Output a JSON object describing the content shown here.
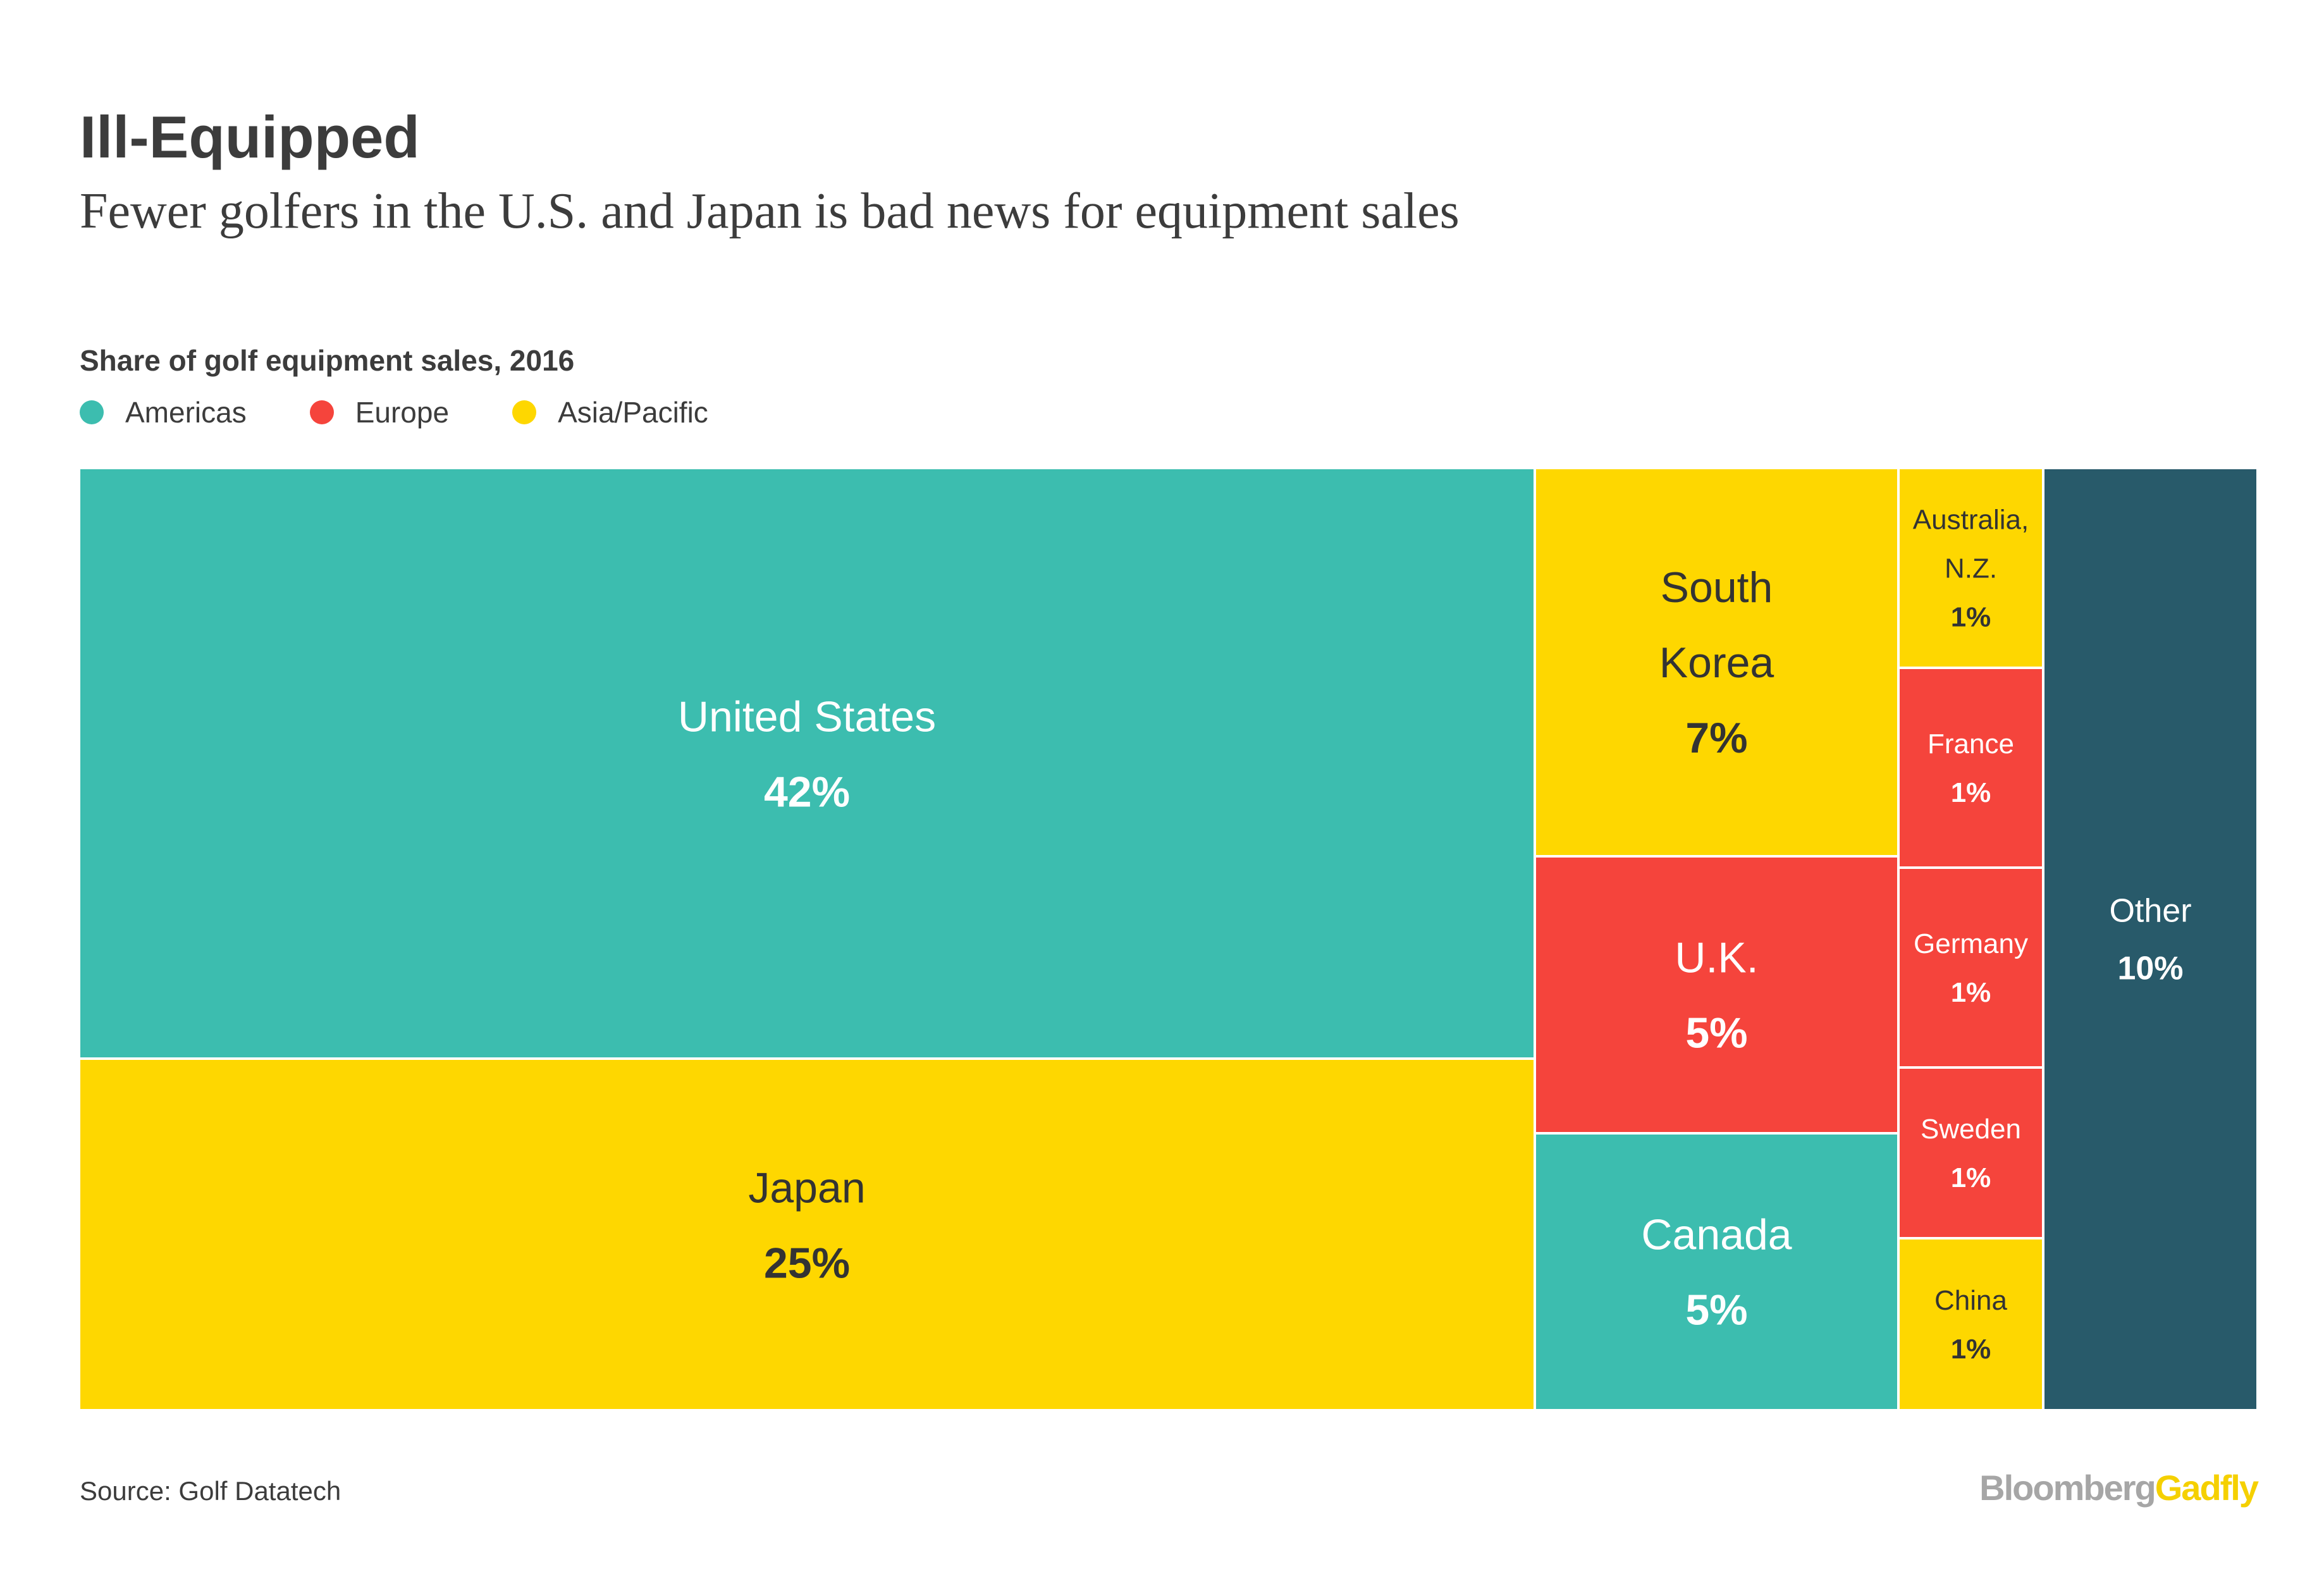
{
  "title": "Ill-Equipped",
  "subtitle": "Fewer golfers in the U.S. and Japan is bad news for equipment sales",
  "chart_label": "Share of golf equipment sales, 2016",
  "source": "Source: Golf Datatech",
  "logo": {
    "part1": "Bloomberg",
    "part2": "Gadfly",
    "color1": "#a6a6a6",
    "color2": "#f5d000"
  },
  "colors": {
    "Americas": "#3cbdaf",
    "Europe": "#f5443c",
    "Asia/Pacific": "#fed700",
    "Other": "#285a6a"
  },
  "legend": [
    {
      "label": "Americas",
      "color": "#3cbdaf"
    },
    {
      "label": "Europe",
      "color": "#f5443c"
    },
    {
      "label": "Asia/Pacific",
      "color": "#fed700"
    }
  ],
  "chart_data": {
    "type": "treemap",
    "unit": "%",
    "items": [
      {
        "name": "United States",
        "value": 42,
        "label": "42%",
        "region": "Americas"
      },
      {
        "name": "Japan",
        "value": 25,
        "label": "25%",
        "region": "Asia/Pacific"
      },
      {
        "name": "South Korea",
        "value": 7,
        "label": "7%",
        "region": "Asia/Pacific"
      },
      {
        "name": "U.K.",
        "value": 5,
        "label": "5%",
        "region": "Europe"
      },
      {
        "name": "Canada",
        "value": 5,
        "label": "5%",
        "region": "Americas"
      },
      {
        "name": "Australia, N.Z.",
        "value": 1,
        "label": "1%",
        "region": "Asia/Pacific"
      },
      {
        "name": "France",
        "value": 1,
        "label": "1%",
        "region": "Europe"
      },
      {
        "name": "Germany",
        "value": 1,
        "label": "1%",
        "region": "Europe"
      },
      {
        "name": "Sweden",
        "value": 1,
        "label": "1%",
        "region": "Europe"
      },
      {
        "name": "China",
        "value": 1,
        "label": "1%",
        "region": "Asia/Pacific"
      },
      {
        "name": "Other",
        "value": 10,
        "label": "10%",
        "region": "Other"
      }
    ]
  }
}
